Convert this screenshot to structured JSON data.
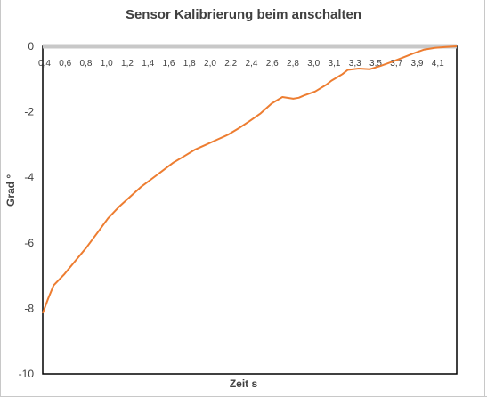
{
  "chart_data": {
    "type": "line",
    "title": "Sensor Kalibrierung beim anschalten",
    "xlabel": "Zeit s",
    "ylabel": "Grad °",
    "ylim": [
      -10,
      0
    ],
    "y_ticks": [
      "0",
      "-2",
      "-4",
      "-6",
      "-8",
      "-10"
    ],
    "x_ticks": [
      "0,4",
      "0,6",
      "0,8",
      "1,0",
      "1,2",
      "1,4",
      "1,6",
      "1,8",
      "2,0",
      "2,2",
      "2,4",
      "2,6",
      "2,8",
      "3,0",
      "3,1",
      "3,3",
      "3,5",
      "3,7",
      "3,9",
      "4,1"
    ],
    "grid": false,
    "line_color": "#ed7d31",
    "series": [
      {
        "x": [
          0.4,
          0.45,
          0.5,
          0.6,
          0.7,
          0.8,
          0.9,
          1.0,
          1.1,
          1.2,
          1.3,
          1.4,
          1.5,
          1.6,
          1.7,
          1.8,
          1.9,
          2.0,
          2.1,
          2.2,
          2.3,
          2.4,
          2.5,
          2.6,
          2.7,
          2.75,
          2.8,
          2.9,
          3.0,
          3.05,
          3.1,
          3.15,
          3.2,
          3.3,
          3.4,
          3.5,
          3.6,
          3.7,
          3.8,
          3.9,
          4.0,
          4.1,
          4.2
        ],
        "y": [
          -8.15,
          -7.7,
          -7.3,
          -6.95,
          -6.55,
          -6.15,
          -5.7,
          -5.25,
          -4.9,
          -4.6,
          -4.3,
          -4.05,
          -3.8,
          -3.55,
          -3.35,
          -3.15,
          -3.0,
          -2.85,
          -2.7,
          -2.5,
          -2.28,
          -2.05,
          -1.75,
          -1.55,
          -1.6,
          -1.57,
          -1.5,
          -1.38,
          -1.18,
          -1.05,
          -0.95,
          -0.85,
          -0.72,
          -0.68,
          -0.7,
          -0.6,
          -0.48,
          -0.35,
          -0.22,
          -0.1,
          -0.05,
          -0.02,
          0.0
        ]
      }
    ]
  }
}
